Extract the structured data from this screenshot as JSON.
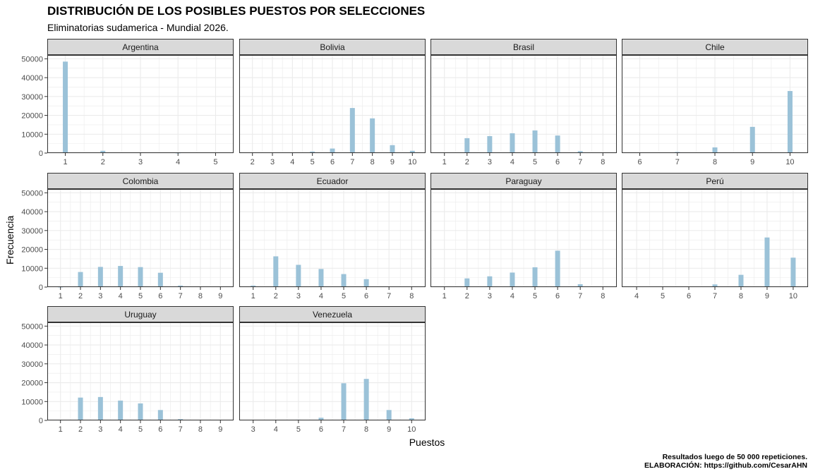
{
  "header": {
    "title": "DISTRIBUCIÓN DE LOS POSIBLES PUESTOS POR SELECCIONES",
    "subtitle": "Eliminatorias sudamerica - Mundial 2026."
  },
  "caption": {
    "line1": "Resultados luego de 50 000 repeticiones.",
    "line2": "ELABORACIÓN: https://github.com/CesarAHN"
  },
  "colors": {
    "bar": "#9bc2d8",
    "strip_fill": "#d9d9d9",
    "grid": "#ebebeb",
    "panel_border": "#333333",
    "tick_text": "#4d4d4d"
  },
  "chart_data": {
    "type": "bar",
    "facet_layout": {
      "columns": 4,
      "rows": 3
    },
    "xlabel": "Puestos",
    "ylabel": "Frecuencia",
    "ylim": [
      0,
      52000
    ],
    "y_ticks": [
      0,
      10000,
      20000,
      30000,
      40000,
      50000
    ],
    "grid": true,
    "facets": [
      {
        "name": "Argentina",
        "x": [
          1,
          2,
          3,
          4
        ],
        "values": [
          48500,
          1200,
          250,
          50
        ],
        "xlim": [
          1,
          5
        ],
        "x_ticks": [
          1,
          2,
          3,
          4,
          5
        ]
      },
      {
        "name": "Bolivia",
        "x": [
          4,
          5,
          6,
          7,
          8,
          9,
          10
        ],
        "values": [
          200,
          800,
          2400,
          23900,
          18400,
          4200,
          1200
        ],
        "xlim": [
          2,
          10
        ],
        "x_ticks": [
          2,
          3,
          4,
          5,
          6,
          7,
          8,
          9,
          10
        ]
      },
      {
        "name": "Brasil",
        "x": [
          1,
          2,
          3,
          4,
          5,
          6,
          7
        ],
        "values": [
          300,
          7900,
          9000,
          10500,
          12000,
          9300,
          1000
        ],
        "xlim": [
          1,
          8
        ],
        "x_ticks": [
          1,
          2,
          3,
          4,
          5,
          6,
          7,
          8
        ]
      },
      {
        "name": "Chile",
        "x": [
          7,
          8,
          9,
          10
        ],
        "values": [
          600,
          3000,
          13900,
          32900
        ],
        "xlim": [
          6,
          10
        ],
        "x_ticks": [
          6,
          7,
          8,
          9,
          10
        ]
      },
      {
        "name": "Colombia",
        "x": [
          1,
          2,
          3,
          4,
          5,
          6,
          7
        ],
        "values": [
          50,
          8000,
          10700,
          11200,
          10600,
          7600,
          800
        ],
        "xlim": [
          1,
          9
        ],
        "x_ticks": [
          1,
          2,
          3,
          4,
          5,
          6,
          7,
          8,
          9
        ]
      },
      {
        "name": "Ecuador",
        "x": [
          1,
          2,
          3,
          4,
          5,
          6
        ],
        "values": [
          800,
          16300,
          11800,
          9600,
          6900,
          4200
        ],
        "xlim": [
          1,
          8
        ],
        "x_ticks": [
          1,
          2,
          3,
          4,
          5,
          6,
          7,
          8
        ]
      },
      {
        "name": "Paraguay",
        "x": [
          2,
          3,
          4,
          5,
          6,
          7
        ],
        "values": [
          4600,
          5700,
          7700,
          10500,
          19300,
          1500
        ],
        "xlim": [
          1,
          8
        ],
        "x_ticks": [
          1,
          2,
          3,
          4,
          5,
          6,
          7,
          8
        ]
      },
      {
        "name": "Perú",
        "x": [
          7,
          8,
          9,
          10
        ],
        "values": [
          1400,
          6500,
          26300,
          15600
        ],
        "xlim": [
          4,
          10
        ],
        "x_ticks": [
          4,
          5,
          6,
          7,
          8,
          9,
          10
        ]
      },
      {
        "name": "Uruguay",
        "x": [
          1,
          2,
          3,
          4,
          5,
          6,
          7
        ],
        "values": [
          200,
          12100,
          12400,
          10500,
          9000,
          5500,
          700
        ],
        "xlim": [
          1,
          9
        ],
        "x_ticks": [
          1,
          2,
          3,
          4,
          5,
          6,
          7,
          8,
          9
        ]
      },
      {
        "name": "Venezuela",
        "x": [
          5,
          6,
          7,
          8,
          9,
          10
        ],
        "values": [
          400,
          1400,
          19700,
          22000,
          5500,
          1100
        ],
        "xlim": [
          3,
          10
        ],
        "x_ticks": [
          3,
          4,
          5,
          6,
          7,
          8,
          9,
          10
        ]
      }
    ]
  }
}
